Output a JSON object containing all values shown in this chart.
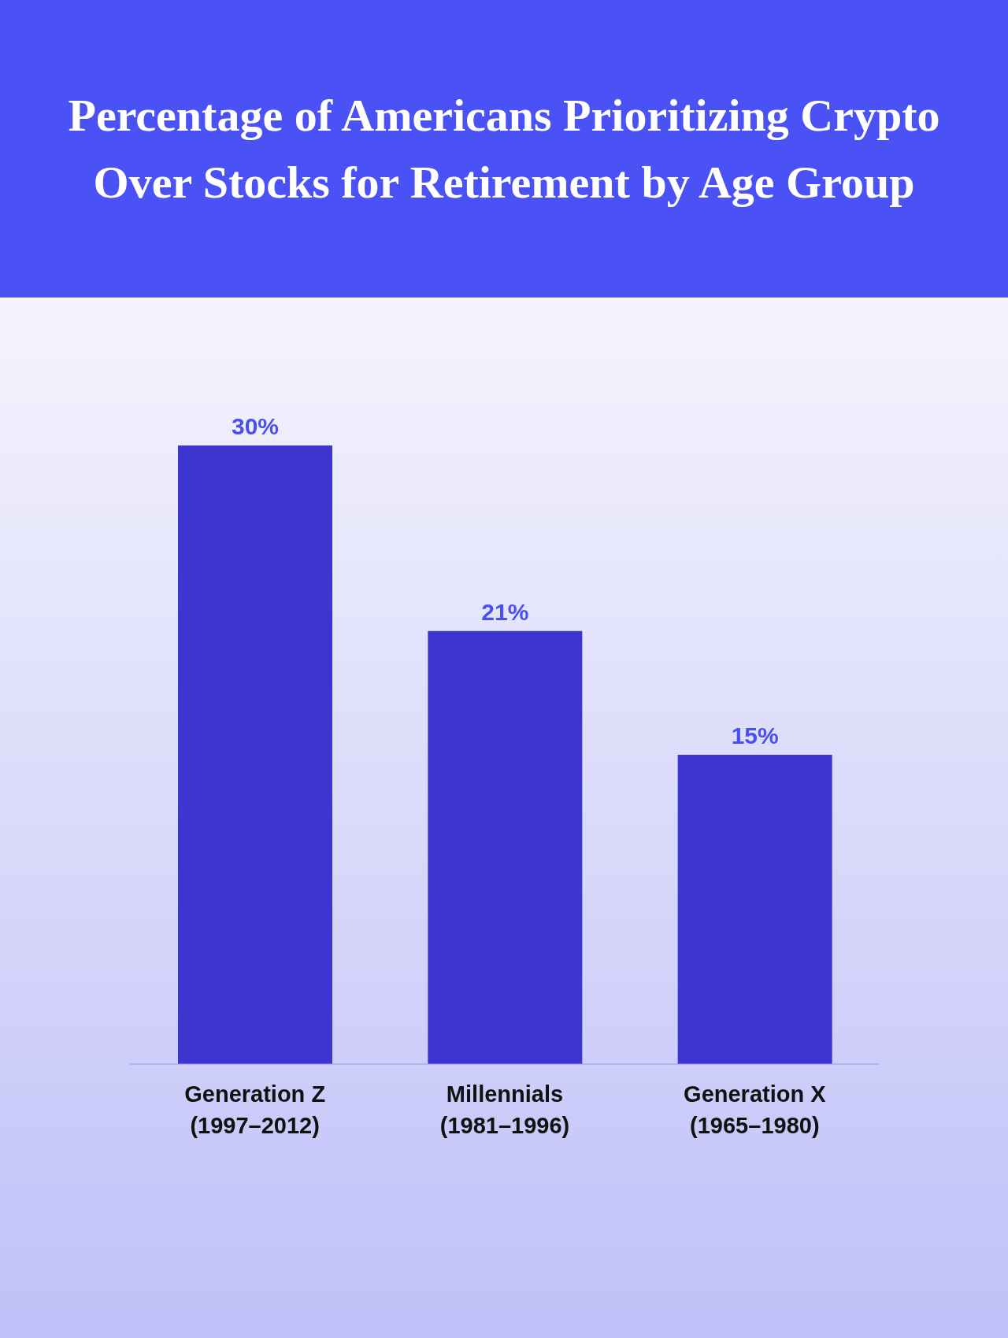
{
  "chart_data": {
    "type": "bar",
    "title": "Percentage of Americans Prioritizing Crypto Over Stocks for Retirement by Age Group",
    "categories": [
      "Generation Z\n(1997–2012)",
      "Millennials\n(1981–1996)",
      "Generation X\n(1965–1980)"
    ],
    "values": [
      30,
      21,
      15
    ],
    "value_labels": [
      "30%",
      "21%",
      "15%"
    ],
    "color": "#3c35d0"
  }
}
